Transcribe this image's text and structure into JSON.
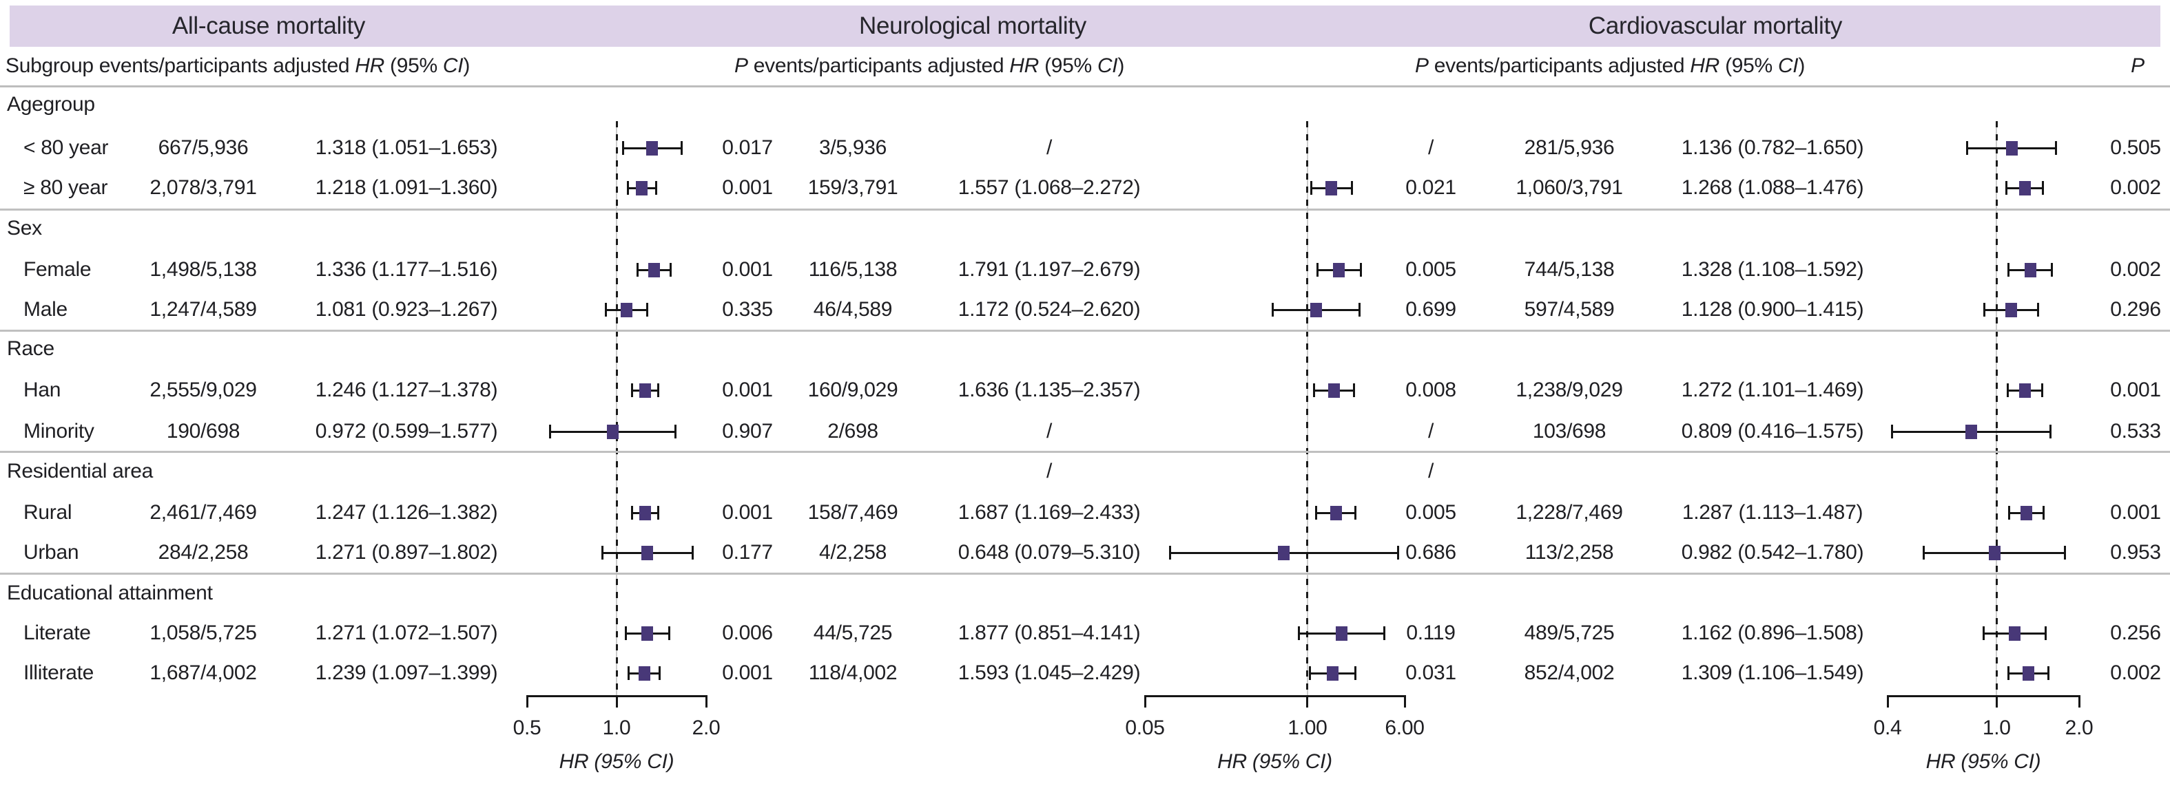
{
  "figure": {
    "axis_title": "HR (95% CI)",
    "colors": {
      "band": "#ddd2e8",
      "marker": "#483878",
      "text": "#1f1f23",
      "divider": "#c0c0c0",
      "reference_dash": "#1b1b1b"
    },
    "col_headers": [
      {
        "parts": [
          [
            "r",
            "Subgroup events/participants adjusted "
          ],
          [
            "i",
            "HR"
          ],
          [
            "r",
            " (95% "
          ],
          [
            "i",
            "CI"
          ],
          [
            "r",
            ")"
          ]
        ]
      },
      {
        "parts": [
          [
            "i",
            "P"
          ],
          [
            "r",
            " events/participants adjusted "
          ],
          [
            "i",
            "HR"
          ],
          [
            "r",
            " (95% "
          ],
          [
            "i",
            "CI"
          ],
          [
            "r",
            ")"
          ]
        ]
      },
      {
        "parts": [
          [
            "i",
            "P"
          ],
          [
            "r",
            " events/participants adjusted "
          ],
          [
            "i",
            "HR"
          ],
          [
            "r",
            " (95% "
          ],
          [
            "i",
            "CI"
          ],
          [
            "r",
            ")"
          ]
        ]
      },
      {
        "parts": [
          [
            "i",
            "P"
          ]
        ]
      }
    ]
  },
  "chart_data": {
    "type": "forest",
    "scale": "log",
    "panels": [
      {
        "title": "All-cause mortality",
        "ticks": [
          "0.5",
          "1.0",
          "2.0"
        ],
        "tick_values": [
          0.5,
          1.0,
          2.0
        ],
        "ref_line": 1.0,
        "axis_label": "HR (95% CI)"
      },
      {
        "title": "Neurological mortality",
        "ticks": [
          "0.05",
          "1.00",
          "6.00"
        ],
        "tick_values": [
          0.05,
          1.0,
          6.0
        ],
        "ref_line": 1.0,
        "axis_label": "HR (95% CI)"
      },
      {
        "title": "Cardiovascular mortality",
        "ticks": [
          "0.4",
          "1.0",
          "2.0"
        ],
        "tick_values": [
          0.4,
          1.0,
          2.0
        ],
        "ref_line": 1.0,
        "axis_label": "HR (95% CI)"
      }
    ],
    "rows": [
      {
        "type": "section",
        "label": "Agegroup"
      },
      {
        "type": "item",
        "label": "< 80 year",
        "cells": [
          {
            "events": "667/5,936",
            "hr_text": "1.318 (1.051–1.653)",
            "est": 1.318,
            "lo": 1.051,
            "hi": 1.653,
            "p": "0.017"
          },
          {
            "events": "3/5,936",
            "hr_text": "/",
            "est": null,
            "lo": null,
            "hi": null,
            "p": "/"
          },
          {
            "events": "281/5,936",
            "hr_text": "1.136 (0.782–1.650)",
            "est": 1.136,
            "lo": 0.782,
            "hi": 1.65,
            "p": "0.505"
          }
        ]
      },
      {
        "type": "item",
        "label": "≥ 80 year",
        "cells": [
          {
            "events": "2,078/3,791",
            "hr_text": "1.218 (1.091–1.360)",
            "est": 1.218,
            "lo": 1.091,
            "hi": 1.36,
            "p": "0.001"
          },
          {
            "events": "159/3,791",
            "hr_text": "1.557 (1.068–2.272)",
            "est": 1.557,
            "lo": 1.068,
            "hi": 2.272,
            "p": "0.021"
          },
          {
            "events": "1,060/3,791",
            "hr_text": "1.268 (1.088–1.476)",
            "est": 1.268,
            "lo": 1.088,
            "hi": 1.476,
            "p": "0.002"
          }
        ]
      },
      {
        "type": "divider"
      },
      {
        "type": "section",
        "label": "Sex"
      },
      {
        "type": "item",
        "label": "Female",
        "cells": [
          {
            "events": "1,498/5,138",
            "hr_text": "1.336 (1.177–1.516)",
            "est": 1.336,
            "lo": 1.177,
            "hi": 1.516,
            "p": "0.001"
          },
          {
            "events": "116/5,138",
            "hr_text": "1.791 (1.197–2.679)",
            "est": 1.791,
            "lo": 1.197,
            "hi": 2.679,
            "p": "0.005"
          },
          {
            "events": "744/5,138",
            "hr_text": "1.328 (1.108–1.592)",
            "est": 1.328,
            "lo": 1.108,
            "hi": 1.592,
            "p": "0.002"
          }
        ]
      },
      {
        "type": "item",
        "label": "Male",
        "cells": [
          {
            "events": "1,247/4,589",
            "hr_text": "1.081 (0.923–1.267)",
            "est": 1.081,
            "lo": 0.923,
            "hi": 1.267,
            "p": "0.335"
          },
          {
            "events": "46/4,589",
            "hr_text": "1.172 (0.524–2.620)",
            "est": 1.172,
            "lo": 0.524,
            "hi": 2.62,
            "p": "0.699"
          },
          {
            "events": "597/4,589",
            "hr_text": "1.128 (0.900–1.415)",
            "est": 1.128,
            "lo": 0.9,
            "hi": 1.415,
            "p": "0.296"
          }
        ]
      },
      {
        "type": "divider"
      },
      {
        "type": "section",
        "label": "Race"
      },
      {
        "type": "item",
        "label": "Han",
        "cells": [
          {
            "events": "2,555/9,029",
            "hr_text": "1.246 (1.127–1.378)",
            "est": 1.246,
            "lo": 1.127,
            "hi": 1.378,
            "p": "0.001"
          },
          {
            "events": "160/9,029",
            "hr_text": "1.636 (1.135–2.357)",
            "est": 1.636,
            "lo": 1.135,
            "hi": 2.357,
            "p": "0.008"
          },
          {
            "events": "1,238/9,029",
            "hr_text": "1.272 (1.101–1.469)",
            "est": 1.272,
            "lo": 1.101,
            "hi": 1.469,
            "p": "0.001"
          }
        ]
      },
      {
        "type": "item",
        "label": "Minority",
        "cells": [
          {
            "events": "190/698",
            "hr_text": "0.972 (0.599–1.577)",
            "est": 0.972,
            "lo": 0.599,
            "hi": 1.577,
            "p": "0.907"
          },
          {
            "events": "2/698",
            "hr_text": "/",
            "est": null,
            "lo": null,
            "hi": null,
            "p": "/"
          },
          {
            "events": "103/698",
            "hr_text": "0.809 (0.416–1.575)",
            "est": 0.809,
            "lo": 0.416,
            "hi": 1.575,
            "p": "0.533"
          }
        ]
      },
      {
        "type": "divider"
      },
      {
        "type": "section",
        "label": "Residential area",
        "cells": [
          null,
          {
            "events": null,
            "hr_text": "/",
            "est": null,
            "lo": null,
            "hi": null,
            "p": "/"
          },
          null
        ]
      },
      {
        "type": "item",
        "label": "Rural",
        "cells": [
          {
            "events": "2,461/7,469",
            "hr_text": "1.247 (1.126–1.382)",
            "est": 1.247,
            "lo": 1.126,
            "hi": 1.382,
            "p": "0.001"
          },
          {
            "events": "158/7,469",
            "hr_text": "1.687 (1.169–2.433)",
            "est": 1.687,
            "lo": 1.169,
            "hi": 2.433,
            "p": "0.005"
          },
          {
            "events": "1,228/7,469",
            "hr_text": "1.287 (1.113–1.487)",
            "est": 1.287,
            "lo": 1.113,
            "hi": 1.487,
            "p": "0.001"
          }
        ]
      },
      {
        "type": "item",
        "label": "Urban",
        "cells": [
          {
            "events": "284/2,258",
            "hr_text": "1.271 (0.897–1.802)",
            "est": 1.271,
            "lo": 0.897,
            "hi": 1.802,
            "p": "0.177"
          },
          {
            "events": "4/2,258",
            "hr_text": "0.648 (0.079–5.310)",
            "est": 0.648,
            "lo": 0.079,
            "hi": 5.31,
            "p": "0.686"
          },
          {
            "events": "113/2,258",
            "hr_text": "0.982 (0.542–1.780)",
            "est": 0.982,
            "lo": 0.542,
            "hi": 1.78,
            "p": "0.953"
          }
        ]
      },
      {
        "type": "divider"
      },
      {
        "type": "section",
        "label": "Educational attainment"
      },
      {
        "type": "item",
        "label": "Literate",
        "cells": [
          {
            "events": "1,058/5,725",
            "hr_text": "1.271 (1.072–1.507)",
            "est": 1.271,
            "lo": 1.072,
            "hi": 1.507,
            "p": "0.006"
          },
          {
            "events": "44/5,725",
            "hr_text": "1.877 (0.851–4.141)",
            "est": 1.877,
            "lo": 0.851,
            "hi": 4.141,
            "p": "0.119"
          },
          {
            "events": "489/5,725",
            "hr_text": "1.162 (0.896–1.508)",
            "est": 1.162,
            "lo": 0.896,
            "hi": 1.508,
            "p": "0.256"
          }
        ]
      },
      {
        "type": "item",
        "label": "Illiterate",
        "cells": [
          {
            "events": "1,687/4,002",
            "hr_text": "1.239 (1.097–1.399)",
            "est": 1.239,
            "lo": 1.097,
            "hi": 1.399,
            "p": "0.001"
          },
          {
            "events": "118/4,002",
            "hr_text": "1.593 (1.045–2.429)",
            "est": 1.593,
            "lo": 1.045,
            "hi": 2.429,
            "p": "0.031"
          },
          {
            "events": "852/4,002",
            "hr_text": "1.309 (1.106–1.549)",
            "est": 1.309,
            "lo": 1.106,
            "hi": 1.549,
            "p": "0.002"
          }
        ]
      }
    ]
  }
}
